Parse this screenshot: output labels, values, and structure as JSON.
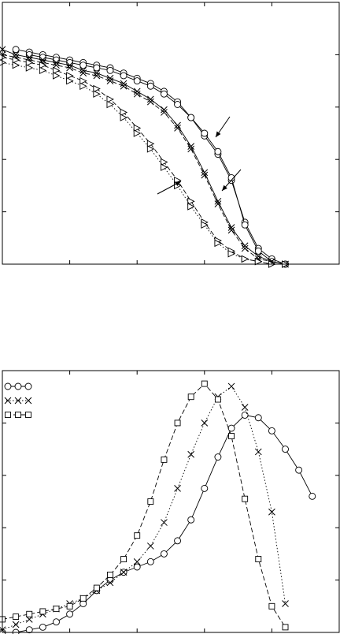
{
  "colors": {
    "ink": "#000000",
    "background": "#ffffff"
  },
  "chart_data": [
    {
      "type": "line",
      "title": "",
      "xlabel": "",
      "ylabel": "",
      "xlim": [
        0,
        25
      ],
      "ylim": [
        0,
        1
      ],
      "grid": false,
      "annotations": [
        "arrow",
        "arrow",
        "arrow"
      ],
      "series": [
        {
          "marker": "circle",
          "line": "solid",
          "x": [
            1,
            2,
            3,
            4,
            5,
            6,
            7,
            8,
            9,
            10,
            11,
            12,
            13,
            14,
            15,
            16,
            17,
            18,
            19,
            20,
            21
          ],
          "y": [
            0.82,
            0.81,
            0.8,
            0.79,
            0.78,
            0.77,
            0.76,
            0.75,
            0.73,
            0.71,
            0.69,
            0.66,
            0.62,
            0.56,
            0.49,
            0.42,
            0.32,
            0.16,
            0.06,
            0.02,
            0.0
          ]
        },
        {
          "marker": "circle",
          "line": "solid",
          "x": [
            2,
            3,
            4,
            5,
            6,
            7,
            8,
            9,
            10,
            11,
            12,
            13,
            14,
            15,
            16,
            17,
            18,
            19,
            20,
            21
          ],
          "y": [
            0.8,
            0.79,
            0.78,
            0.77,
            0.76,
            0.75,
            0.74,
            0.72,
            0.7,
            0.68,
            0.65,
            0.61,
            0.56,
            0.5,
            0.43,
            0.33,
            0.15,
            0.05,
            0.01,
            0.0
          ]
        },
        {
          "marker": "x",
          "line": "solid",
          "x": [
            0,
            1,
            2,
            3,
            4,
            5,
            6,
            7,
            8,
            9,
            10,
            11,
            12,
            13,
            14,
            15,
            16,
            17,
            18,
            19,
            20,
            21
          ],
          "y": [
            0.82,
            0.8,
            0.79,
            0.78,
            0.77,
            0.76,
            0.74,
            0.73,
            0.71,
            0.69,
            0.66,
            0.63,
            0.59,
            0.53,
            0.45,
            0.35,
            0.24,
            0.14,
            0.07,
            0.03,
            0.01,
            0.0
          ]
        },
        {
          "marker": "x",
          "line": "dashed",
          "x": [
            0,
            1,
            2,
            3,
            4,
            5,
            6,
            7,
            8,
            9,
            10,
            11,
            12,
            13,
            14,
            15,
            16,
            17,
            18,
            19,
            20,
            21
          ],
          "y": [
            0.8,
            0.79,
            0.78,
            0.77,
            0.76,
            0.75,
            0.73,
            0.72,
            0.7,
            0.68,
            0.65,
            0.62,
            0.58,
            0.52,
            0.44,
            0.34,
            0.23,
            0.13,
            0.06,
            0.02,
            0.01,
            0.0
          ]
        },
        {
          "marker": "triangle-right",
          "line": "dashed",
          "x": [
            0,
            1,
            2,
            3,
            4,
            5,
            6,
            7,
            8,
            9,
            10,
            11,
            12,
            13,
            14,
            15,
            16,
            17,
            18,
            19,
            20,
            21
          ],
          "y": [
            0.79,
            0.78,
            0.77,
            0.76,
            0.74,
            0.72,
            0.7,
            0.67,
            0.63,
            0.58,
            0.52,
            0.46,
            0.39,
            0.32,
            0.24,
            0.16,
            0.09,
            0.05,
            0.02,
            0.01,
            0.0,
            0.0
          ]
        },
        {
          "marker": "triangle-right",
          "line": "dotted",
          "x": [
            0,
            1,
            2,
            3,
            4,
            5,
            6,
            7,
            8,
            9,
            10,
            11,
            12,
            13,
            14,
            15,
            16,
            17,
            18,
            19,
            20,
            21
          ],
          "y": [
            0.77,
            0.76,
            0.75,
            0.74,
            0.72,
            0.7,
            0.68,
            0.65,
            0.61,
            0.56,
            0.5,
            0.44,
            0.37,
            0.3,
            0.22,
            0.15,
            0.08,
            0.04,
            0.02,
            0.01,
            0.0,
            0.0
          ]
        }
      ]
    },
    {
      "type": "line",
      "title": "",
      "xlabel": "",
      "ylabel": "",
      "xlim": [
        0,
        25
      ],
      "ylim": [
        0,
        1
      ],
      "grid": false,
      "legend": "top-left",
      "series": [
        {
          "marker": "circle",
          "line": "solid",
          "x": [
            0,
            1,
            2,
            3,
            4,
            5,
            6,
            7,
            8,
            9,
            10,
            11,
            12,
            13,
            14,
            15,
            16,
            17,
            18,
            19,
            20,
            21,
            22,
            23
          ],
          "y": [
            0.0,
            0.0,
            0.01,
            0.02,
            0.04,
            0.07,
            0.11,
            0.16,
            0.2,
            0.23,
            0.25,
            0.27,
            0.3,
            0.35,
            0.43,
            0.55,
            0.67,
            0.78,
            0.83,
            0.82,
            0.77,
            0.7,
            0.62,
            0.52
          ]
        },
        {
          "marker": "x",
          "line": "dotted",
          "x": [
            0,
            1,
            2,
            3,
            4,
            5,
            6,
            7,
            8,
            9,
            10,
            11,
            12,
            13,
            14,
            15,
            16,
            17,
            18,
            19,
            20,
            21
          ],
          "y": [
            0.01,
            0.03,
            0.05,
            0.07,
            0.09,
            0.11,
            0.13,
            0.16,
            0.19,
            0.23,
            0.27,
            0.33,
            0.42,
            0.55,
            0.68,
            0.8,
            0.9,
            0.94,
            0.86,
            0.69,
            0.46,
            0.11
          ]
        },
        {
          "marker": "square",
          "line": "dashed",
          "x": [
            0,
            1,
            2,
            3,
            4,
            5,
            6,
            7,
            8,
            9,
            10,
            11,
            12,
            13,
            14,
            15,
            16,
            17,
            18,
            19,
            20,
            21
          ],
          "y": [
            0.05,
            0.06,
            0.07,
            0.08,
            0.09,
            0.1,
            0.13,
            0.17,
            0.22,
            0.28,
            0.37,
            0.5,
            0.66,
            0.8,
            0.9,
            0.95,
            0.89,
            0.75,
            0.51,
            0.28,
            0.1,
            0.02
          ]
        }
      ]
    }
  ]
}
